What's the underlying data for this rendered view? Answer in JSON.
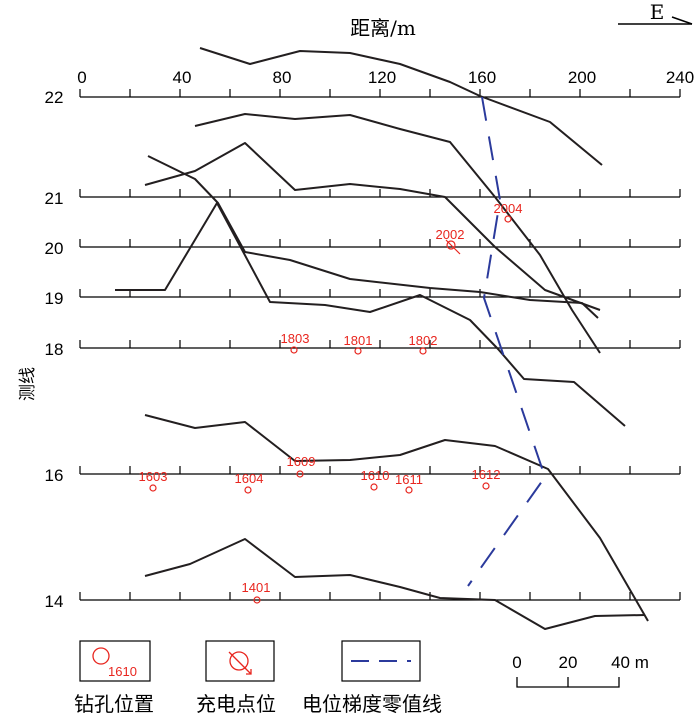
{
  "header": {
    "title": "距离/m",
    "north_arrow": "E",
    "y_axis_label": "测线"
  },
  "axis": {
    "x_ticks": [
      "0",
      "40",
      "80",
      "120",
      "160",
      "200",
      "240"
    ],
    "line_labels": [
      "22",
      "21",
      "20",
      "19",
      "18",
      "16",
      "14"
    ]
  },
  "holes": [
    "1401",
    "1603",
    "1604",
    "1609",
    "1610",
    "1611",
    "1612",
    "1801",
    "1802",
    "1803",
    "2002",
    "2004"
  ],
  "legend": {
    "borehole_number": "1610",
    "borehole_label": "钻孔位置",
    "charge_label": "充电点位",
    "zero_line_label": "电位梯度零值线"
  },
  "scale_bar": {
    "ticks": [
      "0",
      "20",
      "40 m"
    ]
  },
  "colors": {
    "contour": "#231f20",
    "borehole": "#e8261f",
    "zero_line": "#2b3a9c"
  }
}
